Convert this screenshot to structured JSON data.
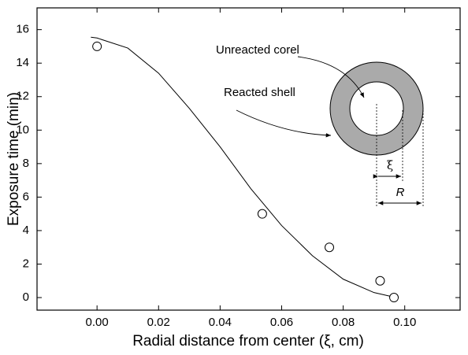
{
  "chart_data": {
    "type": "scatter",
    "x_label": "Radial distance from center (ξ, cm)",
    "y_label": "Exposure time (min)",
    "points": {
      "x": [
        0.0,
        0.0537,
        0.0755,
        0.092,
        0.0965
      ],
      "y": [
        15,
        5,
        3,
        1,
        0
      ],
      "color": "#000000"
    },
    "fit": {
      "x": [
        -0.002,
        0.0,
        0.01,
        0.02,
        0.03,
        0.04,
        0.05,
        0.06,
        0.07,
        0.08,
        0.09,
        0.096
      ],
      "y": [
        15.55,
        15.5,
        14.9,
        13.4,
        11.3,
        9.0,
        6.5,
        4.3,
        2.5,
        1.1,
        0.3,
        0.05
      ],
      "color": "#000000"
    },
    "xlim": [
      -0.0195,
      0.118
    ],
    "ylim": [
      -0.75,
      17.3
    ],
    "xticks": [
      {
        "value": 0,
        "label": "0.00"
      },
      {
        "value": 0.02,
        "label": "0.02"
      },
      {
        "value": 0.04,
        "label": "0.04"
      },
      {
        "value": 0.06,
        "label": "0.06"
      },
      {
        "value": 0.08,
        "label": "0.08"
      },
      {
        "value": 0.1,
        "label": "0.10"
      }
    ],
    "yticks": [
      0,
      2,
      4,
      6,
      8,
      10,
      12,
      14,
      16
    ],
    "annotations": {
      "core": "Unreacted corel",
      "shell": "Reacted shell",
      "xi": "ξ",
      "radius": "R"
    }
  }
}
